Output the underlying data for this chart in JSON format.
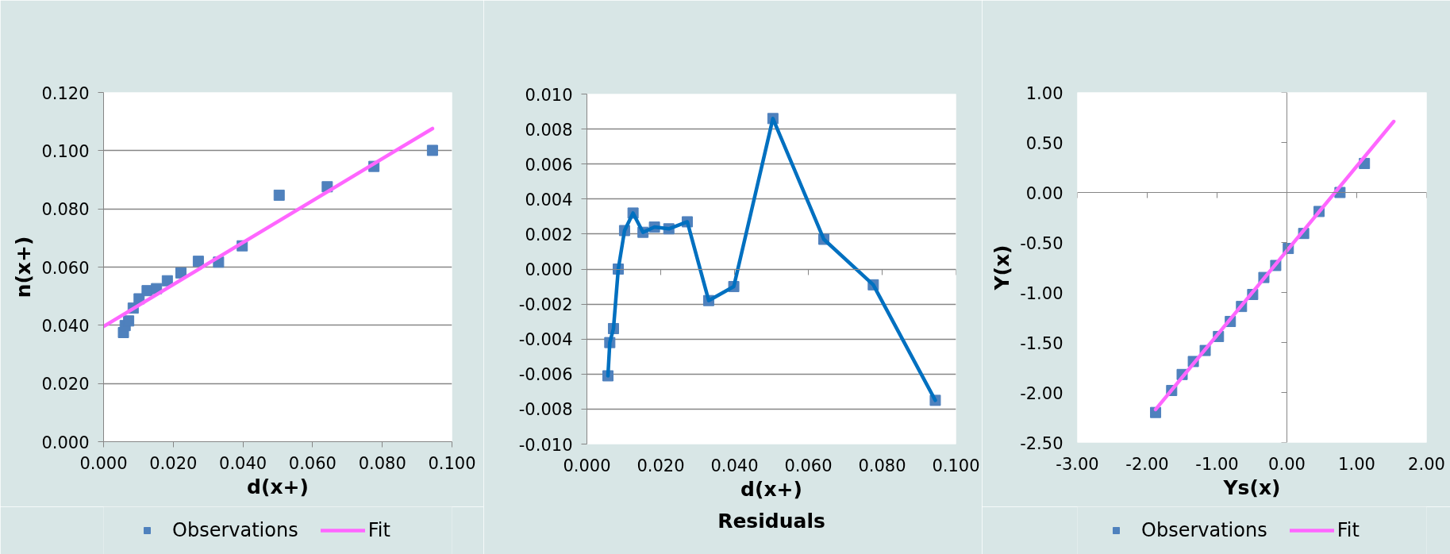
{
  "chart_data": [
    {
      "type": "scatter",
      "xlabel": "d(x+)",
      "ylabel": "n(x+)",
      "xlim": [
        0,
        0.1
      ],
      "xticks": [
        {
          "value": 0,
          "label": "0.000"
        },
        {
          "value": 0.02,
          "label": "0.020"
        },
        {
          "value": 0.04,
          "label": "0.040"
        },
        {
          "value": 0.06,
          "label": "0.060"
        },
        {
          "value": 0.08,
          "label": "0.080"
        },
        {
          "value": 0.1,
          "label": "0.100"
        }
      ],
      "ylim": [
        0,
        0.12
      ],
      "yticks": [
        {
          "value": 0,
          "label": "0.000"
        },
        {
          "value": 0.02,
          "label": "0.020"
        },
        {
          "value": 0.04,
          "label": "0.040"
        },
        {
          "value": 0.06,
          "label": "0.060"
        },
        {
          "value": 0.08,
          "label": "0.080"
        },
        {
          "value": 0.1,
          "label": "0.100"
        },
        {
          "value": 0.12,
          "label": "0.120"
        }
      ],
      "grid": "y",
      "legend": "bottom",
      "series": [
        {
          "name": "Observations",
          "type": "scatter",
          "marker": "square",
          "color": "#4f81bd",
          "x": [
            0.0057,
            0.0062,
            0.0072,
            0.0085,
            0.0102,
            0.0125,
            0.0152,
            0.0183,
            0.0222,
            0.0272,
            0.033,
            0.0398,
            0.0504,
            0.0642,
            0.0776,
            0.0944
          ],
          "values": [
            0.0375,
            0.0399,
            0.0415,
            0.0459,
            0.0491,
            0.0519,
            0.0526,
            0.0553,
            0.058,
            0.062,
            0.0617,
            0.0673,
            0.0847,
            0.0876,
            0.0946,
            0.1001
          ]
        },
        {
          "name": "Fit",
          "type": "line",
          "color": "#ff66ff",
          "x": [
            0,
            0.0944
          ],
          "values": [
            0.0396,
            0.1076
          ]
        }
      ]
    },
    {
      "type": "line",
      "title": "Residuals",
      "xlabel": "d(x+)",
      "xlim": [
        0,
        0.1
      ],
      "xticks": [
        {
          "value": 0,
          "label": "0.000"
        },
        {
          "value": 0.02,
          "label": "0.020"
        },
        {
          "value": 0.04,
          "label": "0.040"
        },
        {
          "value": 0.06,
          "label": "0.060"
        },
        {
          "value": 0.08,
          "label": "0.080"
        },
        {
          "value": 0.1,
          "label": "0.100"
        }
      ],
      "ylim": [
        -0.01,
        0.01
      ],
      "yticks": [
        {
          "value": -0.01,
          "label": "-0.010"
        },
        {
          "value": -0.008,
          "label": "-0.008"
        },
        {
          "value": -0.006,
          "label": "-0.006"
        },
        {
          "value": -0.004,
          "label": "-0.004"
        },
        {
          "value": -0.002,
          "label": "-0.002"
        },
        {
          "value": 0,
          "label": "0.000"
        },
        {
          "value": 0.002,
          "label": "0.002"
        },
        {
          "value": 0.004,
          "label": "0.004"
        },
        {
          "value": 0.006,
          "label": "0.006"
        },
        {
          "value": 0.008,
          "label": "0.008"
        },
        {
          "value": 0.01,
          "label": "0.010"
        }
      ],
      "grid": "y",
      "marker": "square",
      "color": "#0070c0",
      "colors": [
        "#4f81bd",
        "#4f81bd",
        "#4f81bd",
        "#4f81bd",
        "#4f81bd",
        "#4f81bd",
        "#4f81bd",
        "#4f81bd",
        "#4f81bd",
        "#4f81bd",
        "#4f81bd",
        "#4f81bd",
        "#4f81bd",
        "#4f81bd",
        "#4f81bd",
        "#4f81bd"
      ],
      "x": [
        0.0057,
        0.0062,
        0.0072,
        0.0085,
        0.0102,
        0.0125,
        0.0152,
        0.0183,
        0.0222,
        0.0272,
        0.033,
        0.0398,
        0.0504,
        0.0642,
        0.0776,
        0.0944
      ],
      "values": [
        -0.0061,
        -0.0042,
        -0.0034,
        0.0,
        0.0022,
        0.0032,
        0.0021,
        0.0024,
        0.0023,
        0.0027,
        -0.0018,
        -0.001,
        0.0086,
        0.0017,
        -0.0009,
        -0.0075
      ]
    },
    {
      "type": "scatter",
      "xlabel": "Ys(x)",
      "ylabel": "Y(x)",
      "xlim": [
        -3,
        2
      ],
      "xticks": [
        {
          "value": -3,
          "label": "-3.00"
        },
        {
          "value": -2,
          "label": "-2.00"
        },
        {
          "value": -1,
          "label": "-1.00"
        },
        {
          "value": 0,
          "label": "0.00"
        },
        {
          "value": 1,
          "label": "1.00"
        },
        {
          "value": 2,
          "label": "2.00"
        }
      ],
      "ylim": [
        -2.5,
        1
      ],
      "yticks": [
        {
          "value": -2.5,
          "label": "-2.50"
        },
        {
          "value": -2,
          "label": "-2.00"
        },
        {
          "value": -1.5,
          "label": "-1.50"
        },
        {
          "value": -1,
          "label": "-1.00"
        },
        {
          "value": -0.5,
          "label": "-0.50"
        },
        {
          "value": 0,
          "label": "0.00"
        },
        {
          "value": 0.5,
          "label": "0.50"
        },
        {
          "value": 1,
          "label": "1.00"
        }
      ],
      "legend": "bottom",
      "series": [
        {
          "name": "Observations",
          "type": "scatter",
          "marker": "square",
          "color": "#4f81bd",
          "x": [
            -1.88,
            -1.65,
            -1.5,
            -1.34,
            -1.17,
            -0.98,
            -0.81,
            -0.65,
            -0.49,
            -0.33,
            -0.16,
            0.02,
            0.24,
            0.46,
            0.76,
            1.11
          ],
          "values": [
            -2.2,
            -1.98,
            -1.82,
            -1.69,
            -1.58,
            -1.44,
            -1.29,
            -1.14,
            -1.02,
            -0.85,
            -0.73,
            -0.56,
            -0.41,
            -0.19,
            0.0,
            0.29
          ]
        },
        {
          "name": "Fit",
          "type": "line",
          "color": "#ff66ff",
          "x": [
            -1.88,
            1.53
          ],
          "values": [
            -2.17,
            0.71
          ]
        }
      ]
    }
  ]
}
